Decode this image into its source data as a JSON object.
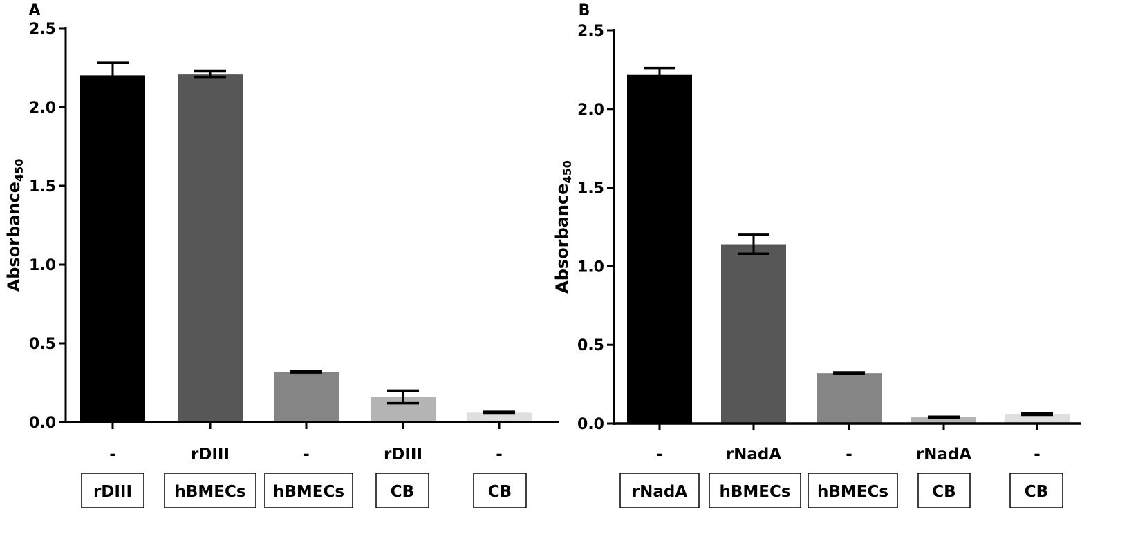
{
  "chart_data": [
    {
      "panel_label": "A",
      "type": "bar",
      "ylabel": "Absorbance",
      "ylabel_subscript": "450",
      "ylim": [
        0,
        2.5
      ],
      "yticks": [
        "0.0",
        "0.5",
        "1.0",
        "1.5",
        "2.0",
        "2.5"
      ],
      "ytick_values": [
        0,
        0.5,
        1.0,
        1.5,
        2.0,
        2.5
      ],
      "treatments": [
        "-",
        "rDIII",
        "-",
        "rDIII",
        "-"
      ],
      "groups": [
        "rDIII",
        "hBMECs",
        "hBMECs",
        "CB",
        "CB"
      ],
      "values": [
        2.2,
        2.21,
        0.32,
        0.16,
        0.06
      ],
      "errors": [
        0.08,
        0.02,
        0.005,
        0.04,
        0.005
      ],
      "colors": [
        "#000000",
        "#575757",
        "#858585",
        "#b4b4b4",
        "#dfdfdf"
      ]
    },
    {
      "panel_label": "B",
      "type": "bar",
      "ylabel": "Absorbance",
      "ylabel_subscript": "450",
      "ylim": [
        0,
        2.5
      ],
      "yticks": [
        "0.0",
        "0.5",
        "1.0",
        "1.5",
        "2.0",
        "2.5"
      ],
      "ytick_values": [
        0,
        0.5,
        1.0,
        1.5,
        2.0,
        2.5
      ],
      "treatments": [
        "-",
        "rNadA",
        "-",
        "rNadA",
        "-"
      ],
      "groups": [
        "rNadA",
        "hBMECs",
        "hBMECs",
        "CB",
        "CB"
      ],
      "values": [
        2.22,
        1.14,
        0.32,
        0.04,
        0.06
      ],
      "errors": [
        0.04,
        0.06,
        0.005,
        0.003,
        0.005
      ],
      "colors": [
        "#000000",
        "#575757",
        "#858585",
        "#b4b4b4",
        "#dfdfdf"
      ]
    }
  ]
}
